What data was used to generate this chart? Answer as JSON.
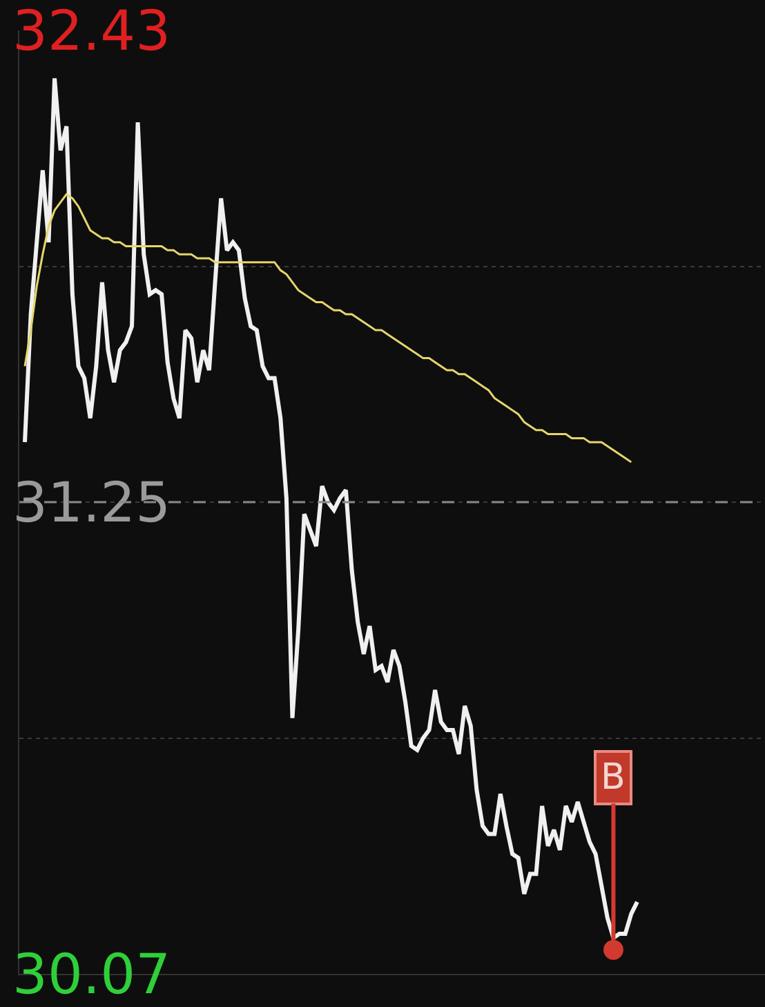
{
  "chart_data": {
    "type": "line",
    "categories": [
      null,
      null,
      null,
      null,
      null,
      null,
      null,
      null,
      null,
      null,
      null,
      null,
      null,
      null,
      null,
      null,
      null,
      null,
      null,
      null,
      null,
      null,
      null,
      null,
      null,
      null,
      null,
      null,
      null,
      null,
      null,
      null,
      null,
      null,
      null,
      null,
      null,
      null,
      null,
      null,
      null,
      null,
      null,
      null,
      null,
      null,
      null,
      null,
      null,
      null,
      null,
      null,
      null,
      null,
      null,
      null,
      null,
      null,
      null,
      null,
      null,
      null,
      null,
      null,
      null,
      null,
      null,
      null,
      null,
      null,
      null,
      null,
      null,
      null,
      null,
      null,
      null,
      null,
      null,
      null,
      null,
      null,
      null,
      null,
      null,
      null,
      null,
      null,
      null,
      null,
      null,
      null,
      null,
      null,
      null,
      null,
      null,
      null,
      null,
      null,
      null,
      null,
      null,
      null,
      null,
      null,
      null,
      null,
      null,
      null,
      null,
      null,
      null,
      null,
      null,
      null,
      null,
      null,
      null,
      null,
      null,
      null,
      null,
      null,
      null
    ],
    "series": [
      {
        "color": "#f0f0f0",
        "values": [
          31.4,
          31.72,
          31.9,
          32.08,
          31.9,
          32.31,
          32.13,
          32.19,
          31.77,
          31.59,
          31.56,
          31.46,
          31.59,
          31.8,
          31.63,
          31.55,
          31.63,
          31.65,
          31.69,
          32.2,
          31.87,
          31.77,
          31.78,
          31.77,
          31.6,
          31.51,
          31.46,
          31.68,
          31.66,
          31.55,
          31.63,
          31.58,
          31.8,
          32.01,
          31.88,
          31.9,
          31.88,
          31.76,
          31.69,
          31.68,
          31.59,
          31.56,
          31.56,
          31.46,
          31.26,
          30.71,
          30.93,
          31.22,
          31.18,
          31.14,
          31.29,
          31.25,
          31.23,
          31.26,
          31.28,
          31.08,
          30.95,
          30.87,
          30.94,
          30.83,
          30.84,
          30.8,
          30.88,
          30.84,
          30.75,
          30.64,
          30.63,
          30.66,
          30.68,
          30.78,
          30.7,
          30.68,
          30.68,
          30.62,
          30.74,
          30.69,
          30.53,
          30.44,
          30.42,
          30.42,
          30.52,
          30.44,
          30.37,
          30.36,
          30.27,
          30.32,
          30.32,
          30.49,
          30.39,
          30.43,
          30.38,
          30.49,
          30.45,
          30.5,
          30.45,
          30.4,
          30.37,
          30.29,
          30.21,
          30.16,
          30.17,
          30.17,
          30.22,
          30.25,
          null,
          null,
          null,
          null,
          null,
          null,
          null,
          null,
          null,
          null,
          null,
          null,
          null,
          null,
          null,
          null,
          null,
          null,
          null,
          null,
          null
        ]
      },
      {
        "color": "#e6d66a",
        "values": [
          31.59,
          31.68,
          31.79,
          31.87,
          31.94,
          31.98,
          32.0,
          32.02,
          32.01,
          31.99,
          31.96,
          31.93,
          31.92,
          31.91,
          31.91,
          31.9,
          31.9,
          31.89,
          31.89,
          31.89,
          31.89,
          31.89,
          31.89,
          31.89,
          31.88,
          31.88,
          31.87,
          31.87,
          31.87,
          31.86,
          31.86,
          31.86,
          31.85,
          31.85,
          31.85,
          31.85,
          31.85,
          31.85,
          31.85,
          31.85,
          31.85,
          31.85,
          31.85,
          31.83,
          31.82,
          31.8,
          31.78,
          31.77,
          31.76,
          31.75,
          31.75,
          31.74,
          31.73,
          31.73,
          31.72,
          31.72,
          31.71,
          31.7,
          31.69,
          31.68,
          31.68,
          31.67,
          31.66,
          31.65,
          31.64,
          31.63,
          31.62,
          31.61,
          31.61,
          31.6,
          31.59,
          31.58,
          31.58,
          31.57,
          31.57,
          31.56,
          31.55,
          31.54,
          31.53,
          31.51,
          31.5,
          31.49,
          31.48,
          31.47,
          31.45,
          31.44,
          31.43,
          31.43,
          31.42,
          31.42,
          31.42,
          31.42,
          31.41,
          31.41,
          31.41,
          31.4,
          31.4,
          31.4,
          31.39,
          31.38,
          31.37,
          31.36,
          31.35,
          null,
          null,
          null,
          null,
          null,
          null,
          null,
          null,
          null,
          null,
          null,
          null,
          null,
          null,
          null,
          null,
          null,
          null,
          null,
          null,
          null,
          null
        ]
      }
    ],
    "ylim": [
      30.07,
      32.43
    ],
    "yticks": [
      30.07,
      {
        "value": 30.66,
        "label": null
      },
      31.25,
      {
        "value": 31.84,
        "label": null
      },
      32.43
    ],
    "grid": "y",
    "ref_lines": [
      {
        "axis": "y",
        "value": 31.25,
        "line_style": "dashed",
        "color": "#8a8a8a"
      }
    ],
    "annotations": [
      {
        "text": "B",
        "y": 30.13
      }
    ],
    "marker": "none",
    "line_style": "solid"
  }
}
